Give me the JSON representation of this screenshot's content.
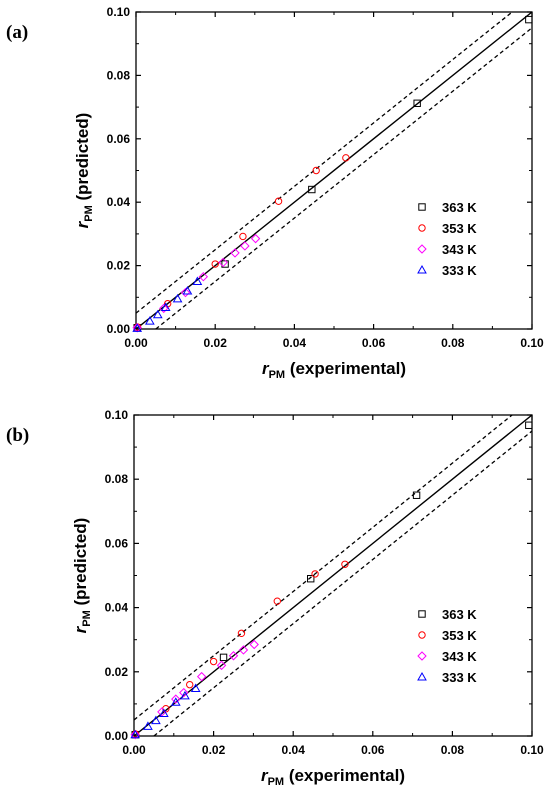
{
  "chart_data": [
    {
      "panel_label": "(a)",
      "type": "scatter",
      "xlabel": {
        "main": "r",
        "sub": "PM",
        "rest": " (experimental)"
      },
      "ylabel": {
        "main": "r",
        "sub": "PM",
        "rest": " (predicted)"
      },
      "xlim": [
        0,
        0.1
      ],
      "ylim": [
        0,
        0.1
      ],
      "xticks": [
        0.0,
        0.02,
        0.04,
        0.06,
        0.08,
        0.1
      ],
      "yticks": [
        0.0,
        0.02,
        0.04,
        0.06,
        0.08,
        0.1
      ],
      "tick_labels": [
        "0.00",
        "0.02",
        "0.04",
        "0.06",
        "0.08",
        "0.10"
      ],
      "grid": false,
      "legend_placement": "lower-right",
      "reference_lines": {
        "parity": "y = x (solid)",
        "bounds": "dashed, approx ±0.005"
      },
      "series": [
        {
          "name": "363 K",
          "marker": "square",
          "color": "#000000",
          "points": [
            [
              0.0003,
              0.0004
            ],
            [
              0.0225,
              0.0205
            ],
            [
              0.0444,
              0.044
            ],
            [
              0.071,
              0.0712
            ],
            [
              0.0992,
              0.0976
            ]
          ]
        },
        {
          "name": "353 K",
          "marker": "circle",
          "color": "#ff0000",
          "points": [
            [
              0.0004,
              0.0006
            ],
            [
              0.008,
              0.008
            ],
            [
              0.02,
              0.0205
            ],
            [
              0.027,
              0.0292
            ],
            [
              0.036,
              0.0403
            ],
            [
              0.0455,
              0.05
            ],
            [
              0.053,
              0.054
            ]
          ]
        },
        {
          "name": "343 K",
          "marker": "diamond",
          "color": "#ff00ff",
          "points": [
            [
              0.0003,
              0.0004
            ],
            [
              0.007,
              0.0065
            ],
            [
              0.0125,
              0.0115
            ],
            [
              0.017,
              0.0165
            ],
            [
              0.022,
              0.021
            ],
            [
              0.025,
              0.024
            ],
            [
              0.0275,
              0.0262
            ],
            [
              0.0302,
              0.0285
            ]
          ]
        },
        {
          "name": "333 K",
          "marker": "triangle",
          "color": "#0000ff",
          "points": [
            [
              0.0003,
              0.0002
            ],
            [
              0.0035,
              0.0025
            ],
            [
              0.0055,
              0.0045
            ],
            [
              0.0075,
              0.0068
            ],
            [
              0.0105,
              0.0095
            ],
            [
              0.013,
              0.012
            ],
            [
              0.0155,
              0.015
            ]
          ]
        }
      ]
    },
    {
      "panel_label": "(b)",
      "type": "scatter",
      "xlabel": {
        "main": "r",
        "sub": "PM",
        "rest": " (experimental)"
      },
      "ylabel": {
        "main": "r",
        "sub": "PM",
        "rest": " (predicted)"
      },
      "xlim": [
        0,
        0.1
      ],
      "ylim": [
        0,
        0.1
      ],
      "xticks": [
        0.0,
        0.02,
        0.04,
        0.06,
        0.08,
        0.1
      ],
      "yticks": [
        0.0,
        0.02,
        0.04,
        0.06,
        0.08,
        0.1
      ],
      "tick_labels": [
        "0.00",
        "0.02",
        "0.04",
        "0.06",
        "0.08",
        "0.10"
      ],
      "grid": false,
      "legend_placement": "lower-right",
      "reference_lines": {
        "parity": "y = x (solid)",
        "bounds": "dashed, approx ±0.005"
      },
      "series": [
        {
          "name": "363 K",
          "marker": "square",
          "color": "#000000",
          "points": [
            [
              0.0003,
              0.0004
            ],
            [
              0.0225,
              0.0245
            ],
            [
              0.0444,
              0.049
            ],
            [
              0.071,
              0.075
            ],
            [
              0.0992,
              0.0968
            ]
          ]
        },
        {
          "name": "353 K",
          "marker": "circle",
          "color": "#ff0000",
          "points": [
            [
              0.0004,
              0.0006
            ],
            [
              0.008,
              0.0085
            ],
            [
              0.014,
              0.016
            ],
            [
              0.02,
              0.0232
            ],
            [
              0.027,
              0.032
            ],
            [
              0.036,
              0.042
            ],
            [
              0.0455,
              0.0505
            ],
            [
              0.053,
              0.0535
            ]
          ]
        },
        {
          "name": "343 K",
          "marker": "diamond",
          "color": "#ff00ff",
          "points": [
            [
              0.0003,
              0.0004
            ],
            [
              0.007,
              0.0075
            ],
            [
              0.0105,
              0.0115
            ],
            [
              0.0125,
              0.0135
            ],
            [
              0.017,
              0.0185
            ],
            [
              0.022,
              0.022
            ],
            [
              0.025,
              0.025
            ],
            [
              0.0275,
              0.0268
            ],
            [
              0.0302,
              0.0285
            ]
          ]
        },
        {
          "name": "333 K",
          "marker": "triangle",
          "color": "#0000ff",
          "points": [
            [
              0.0003,
              0.0004
            ],
            [
              0.0035,
              0.003
            ],
            [
              0.0055,
              0.0048
            ],
            [
              0.0075,
              0.007
            ],
            [
              0.0105,
              0.0105
            ],
            [
              0.0128,
              0.0125
            ],
            [
              0.0155,
              0.0148
            ]
          ]
        }
      ]
    }
  ]
}
